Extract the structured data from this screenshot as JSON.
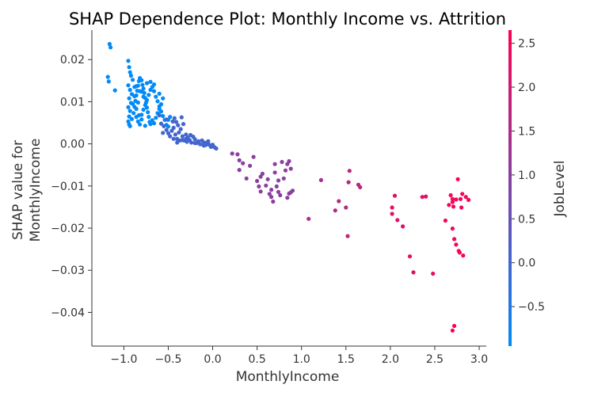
{
  "chart_data": {
    "type": "scatter",
    "title": "SHAP Dependence Plot: Monthly Income vs. Attrition",
    "xlabel": "MonthlyIncome",
    "ylabel_lines": [
      "SHAP value for",
      "MonthlyIncome"
    ],
    "xlim": [
      -1.36,
      3.08
    ],
    "ylim": [
      -0.048,
      0.027
    ],
    "x_ticks": [
      -1.0,
      -0.5,
      0.0,
      0.5,
      1.0,
      1.5,
      2.0,
      2.5,
      3.0
    ],
    "x_tick_labels": [
      "−1.0",
      "−0.5",
      "0.0",
      "0.5",
      "1.0",
      "1.5",
      "2.0",
      "2.5",
      "3.0"
    ],
    "y_ticks": [
      0.02,
      0.01,
      0.0,
      -0.01,
      -0.02,
      -0.03,
      -0.04
    ],
    "y_tick_labels": [
      "0.02",
      "0.01",
      "0.00",
      "−0.01",
      "−0.02",
      "−0.03",
      "−0.04"
    ],
    "grid": false,
    "colorbar": {
      "label": "JobLevel",
      "range": [
        -0.95,
        2.65
      ],
      "ticks": [
        2.5,
        2.0,
        1.5,
        1.0,
        0.5,
        0.0,
        -0.5
      ],
      "tick_labels": [
        "2.5",
        "2.0",
        "1.5",
        "1.0",
        "0.5",
        "0.0",
        "−0.5"
      ],
      "colors": [
        "#008bfb",
        "#ff0052"
      ]
    },
    "points": [
      [
        -1.16,
        0.0237,
        -0.93
      ],
      [
        -1.15,
        0.0229,
        -0.93
      ],
      [
        -1.18,
        0.0159,
        -0.93
      ],
      [
        -1.17,
        0.0148,
        -0.93
      ],
      [
        -1.1,
        0.0127,
        -0.93
      ],
      [
        -0.95,
        0.0197,
        -0.93
      ],
      [
        -0.94,
        0.0182,
        -0.93
      ],
      [
        -0.93,
        0.017,
        -0.93
      ],
      [
        -0.92,
        0.0162,
        -0.93
      ],
      [
        -0.9,
        0.0152,
        -0.93
      ],
      [
        -0.95,
        0.0139,
        -0.93
      ],
      [
        -0.93,
        0.0128,
        -0.93
      ],
      [
        -0.91,
        0.0118,
        -0.93
      ],
      [
        -0.94,
        0.0108,
        -0.93
      ],
      [
        -0.92,
        0.0097,
        -0.93
      ],
      [
        -0.95,
        0.0087,
        -0.93
      ],
      [
        -0.93,
        0.0078,
        -0.93
      ],
      [
        -0.94,
        0.0065,
        -0.93
      ],
      [
        -0.95,
        0.0053,
        -0.93
      ],
      [
        -0.94,
        0.0046,
        -0.93
      ],
      [
        -0.93,
        0.0042,
        -0.93
      ],
      [
        -0.91,
        0.0059,
        -0.93
      ],
      [
        -0.89,
        0.0073,
        -0.93
      ],
      [
        -0.88,
        0.0088,
        -0.93
      ],
      [
        -0.87,
        0.0102,
        -0.93
      ],
      [
        -0.86,
        0.0115,
        -0.93
      ],
      [
        -0.85,
        0.0126,
        -0.93
      ],
      [
        -0.84,
        0.0138,
        -0.93
      ],
      [
        -0.83,
        0.0149,
        -0.93
      ],
      [
        -0.82,
        0.0156,
        -0.93
      ],
      [
        -0.8,
        0.0151,
        -0.93
      ],
      [
        -0.79,
        0.014,
        -0.93
      ],
      [
        -0.78,
        0.0131,
        -0.93
      ],
      [
        -0.77,
        0.0121,
        -0.93
      ],
      [
        -0.76,
        0.0109,
        -0.93
      ],
      [
        -0.75,
        0.0098,
        -0.93
      ],
      [
        -0.74,
        0.0086,
        -0.93
      ],
      [
        -0.73,
        0.0075,
        -0.93
      ],
      [
        -0.72,
        0.0064,
        -0.93
      ],
      [
        -0.71,
        0.0052,
        -0.93
      ],
      [
        -0.86,
        0.0064,
        -0.93
      ],
      [
        -0.84,
        0.0053,
        -0.93
      ],
      [
        -0.82,
        0.0046,
        -0.93
      ],
      [
        -0.8,
        0.0069,
        -0.93
      ],
      [
        -0.78,
        0.0081,
        -0.93
      ],
      [
        -0.76,
        0.0092,
        -0.93
      ],
      [
        -0.74,
        0.0104,
        -0.93
      ],
      [
        -0.72,
        0.0116,
        -0.93
      ],
      [
        -0.7,
        0.0128,
        -0.93
      ],
      [
        -0.68,
        0.0135,
        -0.93
      ],
      [
        -0.66,
        0.0125,
        -0.93
      ],
      [
        -0.64,
        0.0112,
        -0.93
      ],
      [
        -0.62,
        0.0101,
        -0.93
      ],
      [
        -0.6,
        0.0089,
        -0.93
      ],
      [
        -0.58,
        0.0077,
        -0.93
      ],
      [
        -0.56,
        0.0066,
        -0.93
      ],
      [
        -0.54,
        0.0057,
        -0.93
      ],
      [
        -0.68,
        0.0056,
        -0.93
      ],
      [
        -0.66,
        0.0049,
        -0.93
      ],
      [
        -0.64,
        0.0062,
        -0.93
      ],
      [
        -0.62,
        0.0073,
        -0.93
      ],
      [
        -0.6,
        0.0083,
        -0.93
      ],
      [
        -0.58,
        0.0094,
        -0.93
      ],
      [
        -0.56,
        0.0108,
        -0.93
      ],
      [
        -0.6,
        0.0119,
        -0.93
      ],
      [
        -0.66,
        0.0141,
        -0.93
      ],
      [
        -0.7,
        0.0147,
        -0.93
      ],
      [
        -0.74,
        0.0144,
        -0.93
      ],
      [
        -0.78,
        0.0112,
        -0.93
      ],
      [
        -0.82,
        0.0125,
        -0.93
      ],
      [
        -0.88,
        0.0135,
        -0.93
      ],
      [
        -0.9,
        0.0095,
        -0.93
      ],
      [
        -0.86,
        0.0083,
        -0.93
      ],
      [
        -0.8,
        0.0058,
        -0.93
      ],
      [
        -0.76,
        0.0043,
        -0.93
      ],
      [
        -0.7,
        0.0047,
        -0.93
      ],
      [
        -0.52,
        0.0045,
        -0.93
      ],
      [
        -0.5,
        0.0057,
        -0.93
      ],
      [
        -0.48,
        0.0064,
        -0.93
      ],
      [
        -0.5,
        0.0041,
        -0.93
      ],
      [
        -0.88,
        0.0113,
        -0.93
      ],
      [
        -0.86,
        0.0137,
        -0.93
      ],
      [
        -0.84,
        0.0098,
        -0.93
      ],
      [
        -0.8,
        0.0124,
        -0.93
      ],
      [
        -0.83,
        0.0068,
        -0.93
      ],
      [
        -0.58,
        0.0048,
        0.0
      ],
      [
        -0.55,
        0.0042,
        0.0
      ],
      [
        -0.52,
        0.0033,
        0.0
      ],
      [
        -0.5,
        0.0025,
        0.0
      ],
      [
        -0.48,
        0.0018,
        0.0
      ],
      [
        -0.46,
        0.0031,
        0.0
      ],
      [
        -0.44,
        0.0038,
        0.0
      ],
      [
        -0.42,
        0.0022,
        0.0
      ],
      [
        -0.4,
        0.0012,
        0.0
      ],
      [
        -0.38,
        0.0027,
        0.0
      ],
      [
        -0.36,
        0.0035,
        0.0
      ],
      [
        -0.34,
        0.0018,
        0.0
      ],
      [
        -0.32,
        0.0008,
        0.0
      ],
      [
        -0.3,
        0.0022,
        0.0
      ],
      [
        -0.28,
        0.0015,
        0.0
      ],
      [
        -0.26,
        0.0009,
        0.0
      ],
      [
        -0.24,
        0.0003,
        0.0
      ],
      [
        -0.22,
        0.0017,
        0.0
      ],
      [
        -0.2,
        0.0011,
        0.0
      ],
      [
        -0.18,
        0.0002,
        0.0
      ],
      [
        -0.16,
        0.0006,
        0.0
      ],
      [
        -0.14,
        -0.0001,
        0.0
      ],
      [
        -0.12,
        0.0008,
        0.0
      ],
      [
        -0.1,
        0.0003,
        0.0
      ],
      [
        -0.08,
        -0.0003,
        0.0
      ],
      [
        -0.06,
        0.0004,
        0.0
      ],
      [
        -0.04,
        -0.0002,
        0.0
      ],
      [
        -0.02,
        -0.0007,
        0.0
      ],
      [
        0.0,
        -0.0002,
        0.0
      ],
      [
        0.02,
        -0.0008,
        0.0
      ],
      [
        0.04,
        -0.0011,
        0.0
      ],
      [
        -0.45,
        0.0053,
        0.0
      ],
      [
        -0.43,
        0.0061,
        0.0
      ],
      [
        -0.41,
        0.0052,
        0.0
      ],
      [
        -0.39,
        0.0044,
        0.0
      ],
      [
        -0.35,
        0.0063,
        0.0
      ],
      [
        -0.33,
        0.0047,
        0.0
      ],
      [
        -0.37,
        0.0008,
        0.0
      ],
      [
        -0.29,
        0.0005,
        0.0
      ],
      [
        -0.25,
        0.0021,
        0.0
      ],
      [
        -0.6,
        0.0068,
        0.0
      ],
      [
        -0.56,
        0.0026,
        0.0
      ],
      [
        -0.44,
        0.0012,
        0.0
      ],
      [
        -0.4,
        0.0003,
        0.0
      ],
      [
        -0.52,
        0.0058,
        0.0
      ],
      [
        -0.34,
        0.0009,
        0.0
      ],
      [
        -0.3,
        0.0012,
        0.0
      ],
      [
        -0.2,
        0.0002,
        0.0
      ],
      [
        -0.1,
        -0.0004,
        0.0
      ],
      [
        -0.05,
        0.0006,
        0.0
      ],
      [
        0.22,
        -0.0023,
        1.0
      ],
      [
        0.28,
        -0.0025,
        1.0
      ],
      [
        0.3,
        -0.0039,
        1.0
      ],
      [
        0.3,
        -0.0062,
        1.0
      ],
      [
        0.34,
        -0.0046,
        1.0
      ],
      [
        0.38,
        -0.0082,
        1.0
      ],
      [
        0.42,
        -0.0052,
        1.0
      ],
      [
        0.46,
        -0.0031,
        1.0
      ],
      [
        0.5,
        -0.0088,
        1.0
      ],
      [
        0.52,
        -0.0101,
        1.0
      ],
      [
        0.54,
        -0.0113,
        1.0
      ],
      [
        0.56,
        -0.0071,
        1.0
      ],
      [
        0.6,
        -0.0099,
        1.0
      ],
      [
        0.62,
        -0.0084,
        1.0
      ],
      [
        0.64,
        -0.0119,
        1.0
      ],
      [
        0.66,
        -0.0126,
        1.0
      ],
      [
        0.68,
        -0.0137,
        1.0
      ],
      [
        0.7,
        -0.0068,
        1.0
      ],
      [
        0.72,
        -0.0101,
        1.0
      ],
      [
        0.74,
        -0.0114,
        1.0
      ],
      [
        0.76,
        -0.0122,
        1.0
      ],
      [
        0.78,
        -0.0043,
        1.0
      ],
      [
        0.8,
        -0.0082,
        1.0
      ],
      [
        0.82,
        -0.0063,
        1.0
      ],
      [
        0.84,
        -0.0128,
        1.0
      ],
      [
        0.86,
        -0.0118,
        1.0
      ],
      [
        0.86,
        -0.0041,
        1.0
      ],
      [
        0.88,
        -0.0059,
        1.0
      ],
      [
        0.9,
        -0.0111,
        1.0
      ],
      [
        0.7,
        -0.0048,
        1.0
      ],
      [
        0.66,
        -0.0109,
        1.0
      ],
      [
        0.84,
        -0.0048,
        1.0
      ],
      [
        0.88,
        -0.0115,
        1.0
      ],
      [
        0.54,
        -0.0078,
        1.0
      ],
      [
        0.74,
        -0.0087,
        1.0
      ],
      [
        1.08,
        -0.0178,
        1.4
      ],
      [
        1.22,
        -0.0086,
        1.4
      ],
      [
        1.38,
        -0.0158,
        1.6
      ],
      [
        1.42,
        -0.0136,
        1.6
      ],
      [
        1.5,
        -0.0151,
        1.6
      ],
      [
        1.53,
        -0.0091,
        1.6
      ],
      [
        1.54,
        -0.0064,
        1.6
      ],
      [
        1.52,
        -0.0219,
        1.6
      ],
      [
        1.64,
        -0.0097,
        1.7
      ],
      [
        1.66,
        -0.0103,
        1.7
      ],
      [
        2.02,
        -0.0166,
        2.2
      ],
      [
        2.02,
        -0.0151,
        2.2
      ],
      [
        2.05,
        -0.0123,
        2.2
      ],
      [
        2.08,
        -0.0181,
        2.2
      ],
      [
        2.14,
        -0.0196,
        2.2
      ],
      [
        2.22,
        -0.0267,
        2.2
      ],
      [
        2.26,
        -0.0305,
        2.2
      ],
      [
        2.36,
        -0.0126,
        2.2
      ],
      [
        2.4,
        -0.0125,
        2.2
      ],
      [
        2.48,
        -0.0308,
        2.3
      ],
      [
        2.62,
        -0.0182,
        2.5
      ],
      [
        2.66,
        -0.0145,
        2.5
      ],
      [
        2.68,
        -0.0122,
        2.5
      ],
      [
        2.7,
        -0.0131,
        2.5
      ],
      [
        2.7,
        -0.0138,
        2.5
      ],
      [
        2.7,
        -0.0201,
        2.5
      ],
      [
        2.71,
        -0.0149,
        2.5
      ],
      [
        2.72,
        -0.0226,
        2.5
      ],
      [
        2.74,
        -0.0132,
        2.5
      ],
      [
        2.74,
        -0.0239,
        2.5
      ],
      [
        2.76,
        -0.0084,
        2.5
      ],
      [
        2.77,
        -0.0254,
        2.5
      ],
      [
        2.78,
        -0.0258,
        2.5
      ],
      [
        2.79,
        -0.0131,
        2.5
      ],
      [
        2.8,
        -0.0151,
        2.5
      ],
      [
        2.81,
        -0.0119,
        2.5
      ],
      [
        2.82,
        -0.0265,
        2.5
      ],
      [
        2.85,
        -0.0126,
        2.5
      ],
      [
        2.88,
        -0.0133,
        2.5
      ],
      [
        2.72,
        -0.0432,
        2.6
      ],
      [
        2.7,
        -0.0443,
        2.6
      ]
    ]
  }
}
